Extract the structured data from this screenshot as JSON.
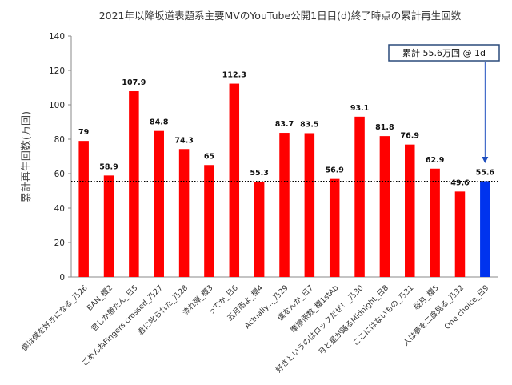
{
  "chart_data": {
    "type": "bar",
    "title": "2021年以降坂道表題系主要MVのYouTube公開1日目(d)終了時点の累計再生回数",
    "ylabel": "累計再生回数(万回)",
    "xlabel": "",
    "ylim": [
      0,
      140
    ],
    "yticks": [
      0,
      20,
      40,
      60,
      80,
      100,
      120,
      140
    ],
    "grid": false,
    "legend": "none",
    "categories": [
      "僕は僕を好きになる_乃26",
      "BAN_櫻2",
      "君しか勝たん_日5",
      "ごめんねFingers crossed_乃27",
      "君に叱られた_乃28",
      "流れ弾_櫻3",
      "ってか_日6",
      "五月雨よ_櫻4",
      "Actually..._乃29",
      "僕なんか_日7",
      "摩擦係数_櫻1stAb",
      "好きというのはロックだぜ！_乃30",
      "月と星が踊るMidnight_日8",
      "ここにはないもの_乃31",
      "桜月_櫻5",
      "人は夢を二度見る_乃32",
      "One choice_日9"
    ],
    "values": [
      79,
      58.9,
      107.9,
      84.8,
      74.3,
      65,
      112.3,
      55.3,
      83.7,
      83.5,
      56.9,
      93.1,
      81.8,
      76.9,
      62.9,
      49.6,
      55.6
    ],
    "value_labels": [
      "79",
      "58.9",
      "107.9",
      "84.8",
      "74.3",
      "65",
      "112.3",
      "55.3",
      "83.7",
      "83.5",
      "56.9",
      "93.1",
      "81.8",
      "76.9",
      "62.9",
      "49.6",
      "55.6"
    ],
    "highlight_index": 16,
    "colors": {
      "bar": "#ff0000",
      "highlight": "#0033ee",
      "axis": "#888888",
      "callout_border": "#2a4a7a",
      "arrow": "#1f4fbf"
    },
    "reference_line": {
      "value": 55.6,
      "style": "dotted"
    },
    "annotation": {
      "text": "累計 55.6万回 @ 1d",
      "target_index": 16
    }
  }
}
